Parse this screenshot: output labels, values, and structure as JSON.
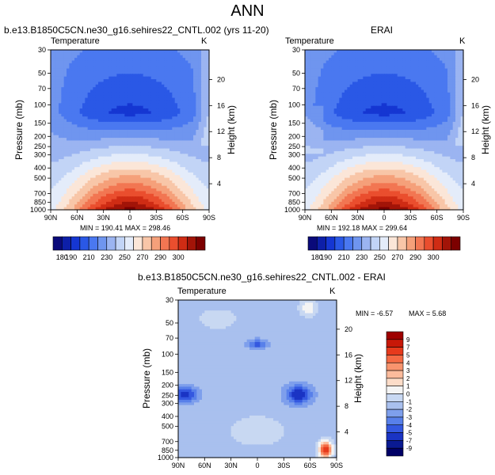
{
  "figure": {
    "title": "ANN",
    "units": "K"
  },
  "panels": [
    {
      "title": "b.e13.B1850C5CN.ne30_g16.sehires22_CNTL.002 (yrs 11-20)",
      "variable": "Temperature",
      "ylabel": "Pressure (mb)",
      "y2label": "Height (km)",
      "stats": "MIN = 190.41   MAX = 298.46"
    },
    {
      "title": "ERAI",
      "variable": "Temperature",
      "ylabel": "Pressure (mb)",
      "y2label": "Height (km)",
      "stats": "MIN = 192.18   MAX = 299.64"
    },
    {
      "title": "b.e13.B1850C5CN.ne30_g16.sehires22_CNTL.002 - ERAI",
      "variable": "Temperature",
      "ylabel": "Pressure (mb)",
      "y2label": "Height (km)",
      "stats_min": "MIN =  -6.57",
      "stats_max": "MAX =   5.68"
    }
  ],
  "chart_data": [
    {
      "type": "heatmap",
      "title": "b.e13.B1850C5CN.ne30_g16.sehires22_CNTL.002 (yrs 11-20)",
      "xlabel": "",
      "ylabel": "Pressure (mb)",
      "y2label": "Height (km)",
      "x_ticks": [
        "90N",
        "60N",
        "30N",
        "0",
        "30S",
        "60S",
        "90S"
      ],
      "y_ticks": [
        30,
        50,
        70,
        100,
        150,
        200,
        250,
        300,
        400,
        500,
        700,
        850,
        1000
      ],
      "y2_ticks": [
        4,
        8,
        12,
        16,
        20
      ],
      "y_scale": "log",
      "min": 190.41,
      "max": 298.46,
      "colorbar_labels": [
        180,
        190,
        210,
        230,
        250,
        270,
        290,
        300
      ]
    },
    {
      "type": "heatmap",
      "title": "ERAI",
      "xlabel": "",
      "ylabel": "Pressure (mb)",
      "y2label": "Height (km)",
      "x_ticks": [
        "90N",
        "60N",
        "30N",
        "0",
        "30S",
        "60S",
        "90S"
      ],
      "y_ticks": [
        30,
        50,
        70,
        100,
        150,
        200,
        250,
        300,
        400,
        500,
        700,
        850,
        1000
      ],
      "y2_ticks": [
        4,
        8,
        12,
        16,
        20
      ],
      "y_scale": "log",
      "min": 192.18,
      "max": 299.64,
      "colorbar_labels": [
        180,
        190,
        210,
        230,
        250,
        270,
        290,
        300
      ]
    },
    {
      "type": "heatmap",
      "title": "b.e13.B1850C5CN.ne30_g16.sehires22_CNTL.002 - ERAI",
      "xlabel": "",
      "ylabel": "Pressure (mb)",
      "y2label": "Height (km)",
      "x_ticks": [
        "90N",
        "60N",
        "30N",
        "0",
        "30S",
        "60S",
        "90S"
      ],
      "y_ticks": [
        30,
        50,
        70,
        100,
        150,
        200,
        250,
        300,
        400,
        500,
        700,
        850,
        1000
      ],
      "y2_ticks": [
        4,
        8,
        12,
        16,
        20
      ],
      "y_scale": "log",
      "min": -6.57,
      "max": 5.68,
      "colorbar_labels": [
        9,
        7,
        5,
        4,
        3,
        2,
        1,
        0,
        -1,
        -2,
        -3,
        -4,
        -5,
        -7,
        -9
      ]
    }
  ],
  "colorbars": {
    "temperature": {
      "colors": [
        "#0a0a7a",
        "#0d1fa8",
        "#1536d2",
        "#2a58e6",
        "#4a78f0",
        "#6f95ef",
        "#9bb4f1",
        "#c2d4f6",
        "#e4ecfa",
        "#fbe6d8",
        "#f8c6a8",
        "#f5a07a",
        "#f27652",
        "#ea4e2e",
        "#cf2c14",
        "#a21408",
        "#7c0000"
      ],
      "labels": [
        "180",
        "190",
        "210",
        "230",
        "250",
        "270",
        "290",
        "300"
      ]
    },
    "difference": {
      "colors": [
        "#9e0000",
        "#c81808",
        "#e63a1c",
        "#f46a44",
        "#f8946e",
        "#fbbb9c",
        "#fcdcc8",
        "#f4f4f4",
        "#c8d8f2",
        "#a9c0ee",
        "#7e9fec",
        "#5880ea",
        "#3458e0",
        "#1a34c4",
        "#0a1a92",
        "#000066"
      ],
      "labels": [
        "9",
        "7",
        "5",
        "4",
        "3",
        "2",
        "1",
        "0",
        "-1",
        "-2",
        "-3",
        "-4",
        "-5",
        "-7",
        "-9"
      ]
    }
  }
}
